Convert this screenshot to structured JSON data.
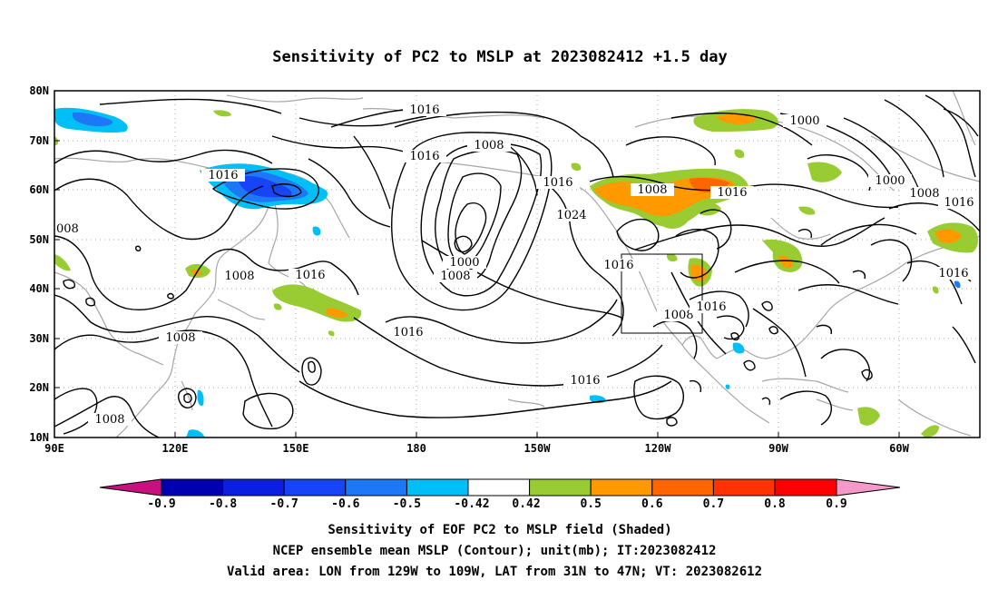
{
  "title": "Sensitivity of PC2 to MSLP at 2023082412 +1.5 day",
  "map": {
    "lat_labels": [
      "80N",
      "70N",
      "60N",
      "50N",
      "40N",
      "30N",
      "20N",
      "10N"
    ],
    "lon_labels": [
      "90E",
      "120E",
      "150E",
      "180",
      "150W",
      "120W",
      "90W",
      "60W"
    ],
    "contour_labels": [
      {
        "text": "1016"
      },
      {
        "text": "1016"
      },
      {
        "text": "1008"
      },
      {
        "text": "1016"
      },
      {
        "text": "1016"
      },
      {
        "text": "1008"
      },
      {
        "text": "1016"
      },
      {
        "text": "1000"
      },
      {
        "text": "1000"
      },
      {
        "text": "1008"
      },
      {
        "text": "1016"
      },
      {
        "text": "008"
      },
      {
        "text": "1024"
      },
      {
        "text": "1000"
      },
      {
        "text": "1008"
      },
      {
        "text": "1016"
      },
      {
        "text": "1008"
      },
      {
        "text": "1016"
      },
      {
        "text": "1016"
      },
      {
        "text": "1008"
      },
      {
        "text": "1016"
      },
      {
        "text": "1008"
      },
      {
        "text": "1016"
      },
      {
        "text": "1016"
      },
      {
        "text": "1008"
      }
    ],
    "valid_area": {
      "lon_min": "129W",
      "lon_max": "109W",
      "lat_min": "31N",
      "lat_max": "47N"
    }
  },
  "colorbar": {
    "labels": [
      "-0.9",
      "-0.8",
      "-0.7",
      "-0.6",
      "-0.5",
      "-0.42",
      "0.42",
      "0.5",
      "0.6",
      "0.7",
      "0.8",
      "0.9"
    ],
    "colors": {
      "low_tip": "#c8117f",
      "bins": [
        "#0000b0",
        "#0a1fe0",
        "#1745f5",
        "#1e78f5",
        "#00bff7",
        "#ffffff",
        "#99cc33",
        "#ff9900",
        "#ff6600",
        "#ff3300",
        "#ff0000"
      ],
      "high_tip": "#f59ac8"
    }
  },
  "captions": [
    "Sensitivity of EOF PC2 to MSLP field (Shaded)",
    "NCEP ensemble mean MSLP (Contour); unit(mb); IT:2023082412",
    "Valid area: LON from 129W to 109W, LAT from 31N to 47N; VT: 2023082612"
  ]
}
